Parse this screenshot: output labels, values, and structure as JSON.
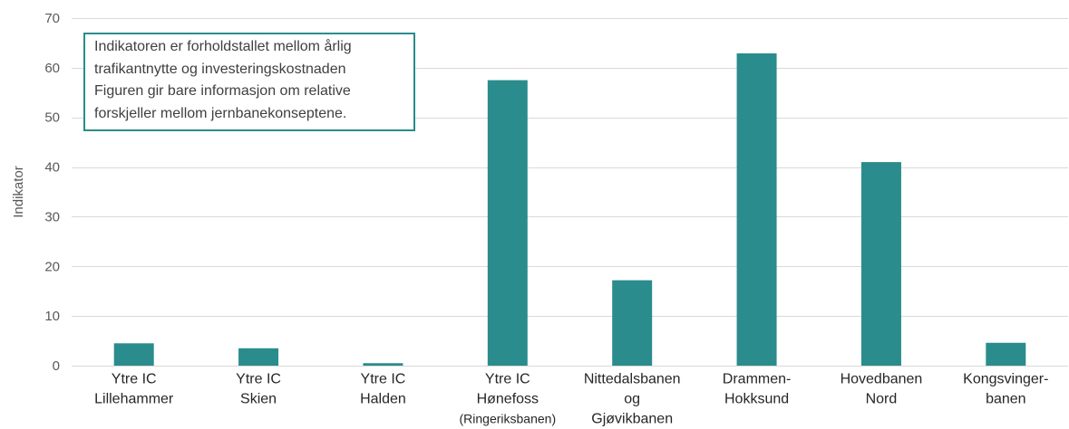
{
  "chart_data": {
    "type": "bar",
    "categories": [
      [
        "Ytre IC",
        "Lillehammer"
      ],
      [
        "Ytre IC",
        "Skien"
      ],
      [
        "Ytre IC",
        "Halden"
      ],
      [
        "Ytre IC",
        "Hønefoss",
        "(Ringeriksbanen)"
      ],
      [
        "Nittedalsbanen",
        "og",
        "Gjøvikbanen"
      ],
      [
        "Drammen-",
        "Hokksund"
      ],
      [
        "Hovedbanen",
        "Nord"
      ],
      [
        "Kongsvinger-",
        "banen"
      ]
    ],
    "values": [
      4.5,
      3.5,
      0.5,
      57.5,
      17.2,
      62.9,
      41.0,
      4.6
    ],
    "ylabel": "Indikator",
    "ylim": [
      0,
      70
    ],
    "yticks": [
      0,
      10,
      20,
      30,
      40,
      50,
      60,
      70
    ],
    "grid": true,
    "legend": "none",
    "annotation": [
      "Indikatoren er forholdstallet mellom årlig",
      "trafikantnytte og investeringskostnaden",
      "Figuren gir bare informasjon om relative",
      "forskjeller mellom jernbanekonseptene."
    ],
    "colors": {
      "bar": "#2a8c8c",
      "annotation_border": "#2a8c8c",
      "grid": "#d9d9d9"
    }
  }
}
